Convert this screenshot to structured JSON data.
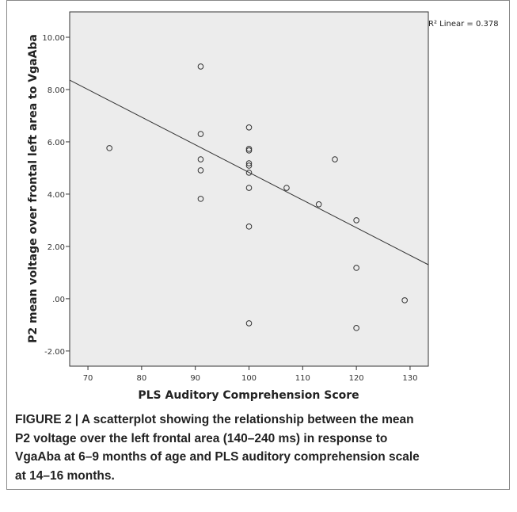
{
  "chart_data": {
    "type": "scatter",
    "x_label": "PLS Auditory Comprehension Score",
    "y_label": "P2 mean voltage over frontal left area to VgaAba",
    "annotation": "R² Linear = 0.378",
    "xlim": [
      66.6,
      133.4
    ],
    "ylim": [
      -2.58,
      10.97
    ],
    "xticks": [
      70,
      80,
      90,
      100,
      110,
      120,
      130
    ],
    "yticks": [
      {
        "value": -2,
        "label": "-2.00"
      },
      {
        "value": 0,
        "label": ".00"
      },
      {
        "value": 2,
        "label": "2.00"
      },
      {
        "value": 4,
        "label": "4.00"
      },
      {
        "value": 6,
        "label": "6.00"
      },
      {
        "value": 8,
        "label": "8.00"
      },
      {
        "value": 10,
        "label": "10.00"
      }
    ],
    "x": [
      74,
      91,
      91,
      91,
      91,
      91,
      100,
      100,
      100,
      100,
      100,
      100,
      100,
      100,
      100,
      107,
      113,
      116,
      120,
      120,
      120,
      129
    ],
    "values": [
      5.76,
      8.88,
      6.3,
      5.33,
      4.91,
      3.82,
      6.55,
      5.73,
      5.67,
      5.18,
      5.09,
      4.82,
      4.24,
      2.76,
      -0.94,
      4.24,
      3.61,
      5.33,
      3.0,
      1.18,
      -1.12,
      -0.06
    ],
    "fit_line": {
      "x": [
        66.6,
        133.4
      ],
      "y": [
        8.36,
        1.3
      ]
    },
    "background": "#ececec",
    "color": "#333333"
  },
  "caption": {
    "lines": [
      "FIGURE 2 | A scatterplot showing the relationship between the mean",
      "P2 voltage over the left frontal area (140–240 ms) in response to",
      "VgaAba at 6–9 months of age and PLS auditory comprehension scale",
      "at 14–16 months."
    ]
  }
}
